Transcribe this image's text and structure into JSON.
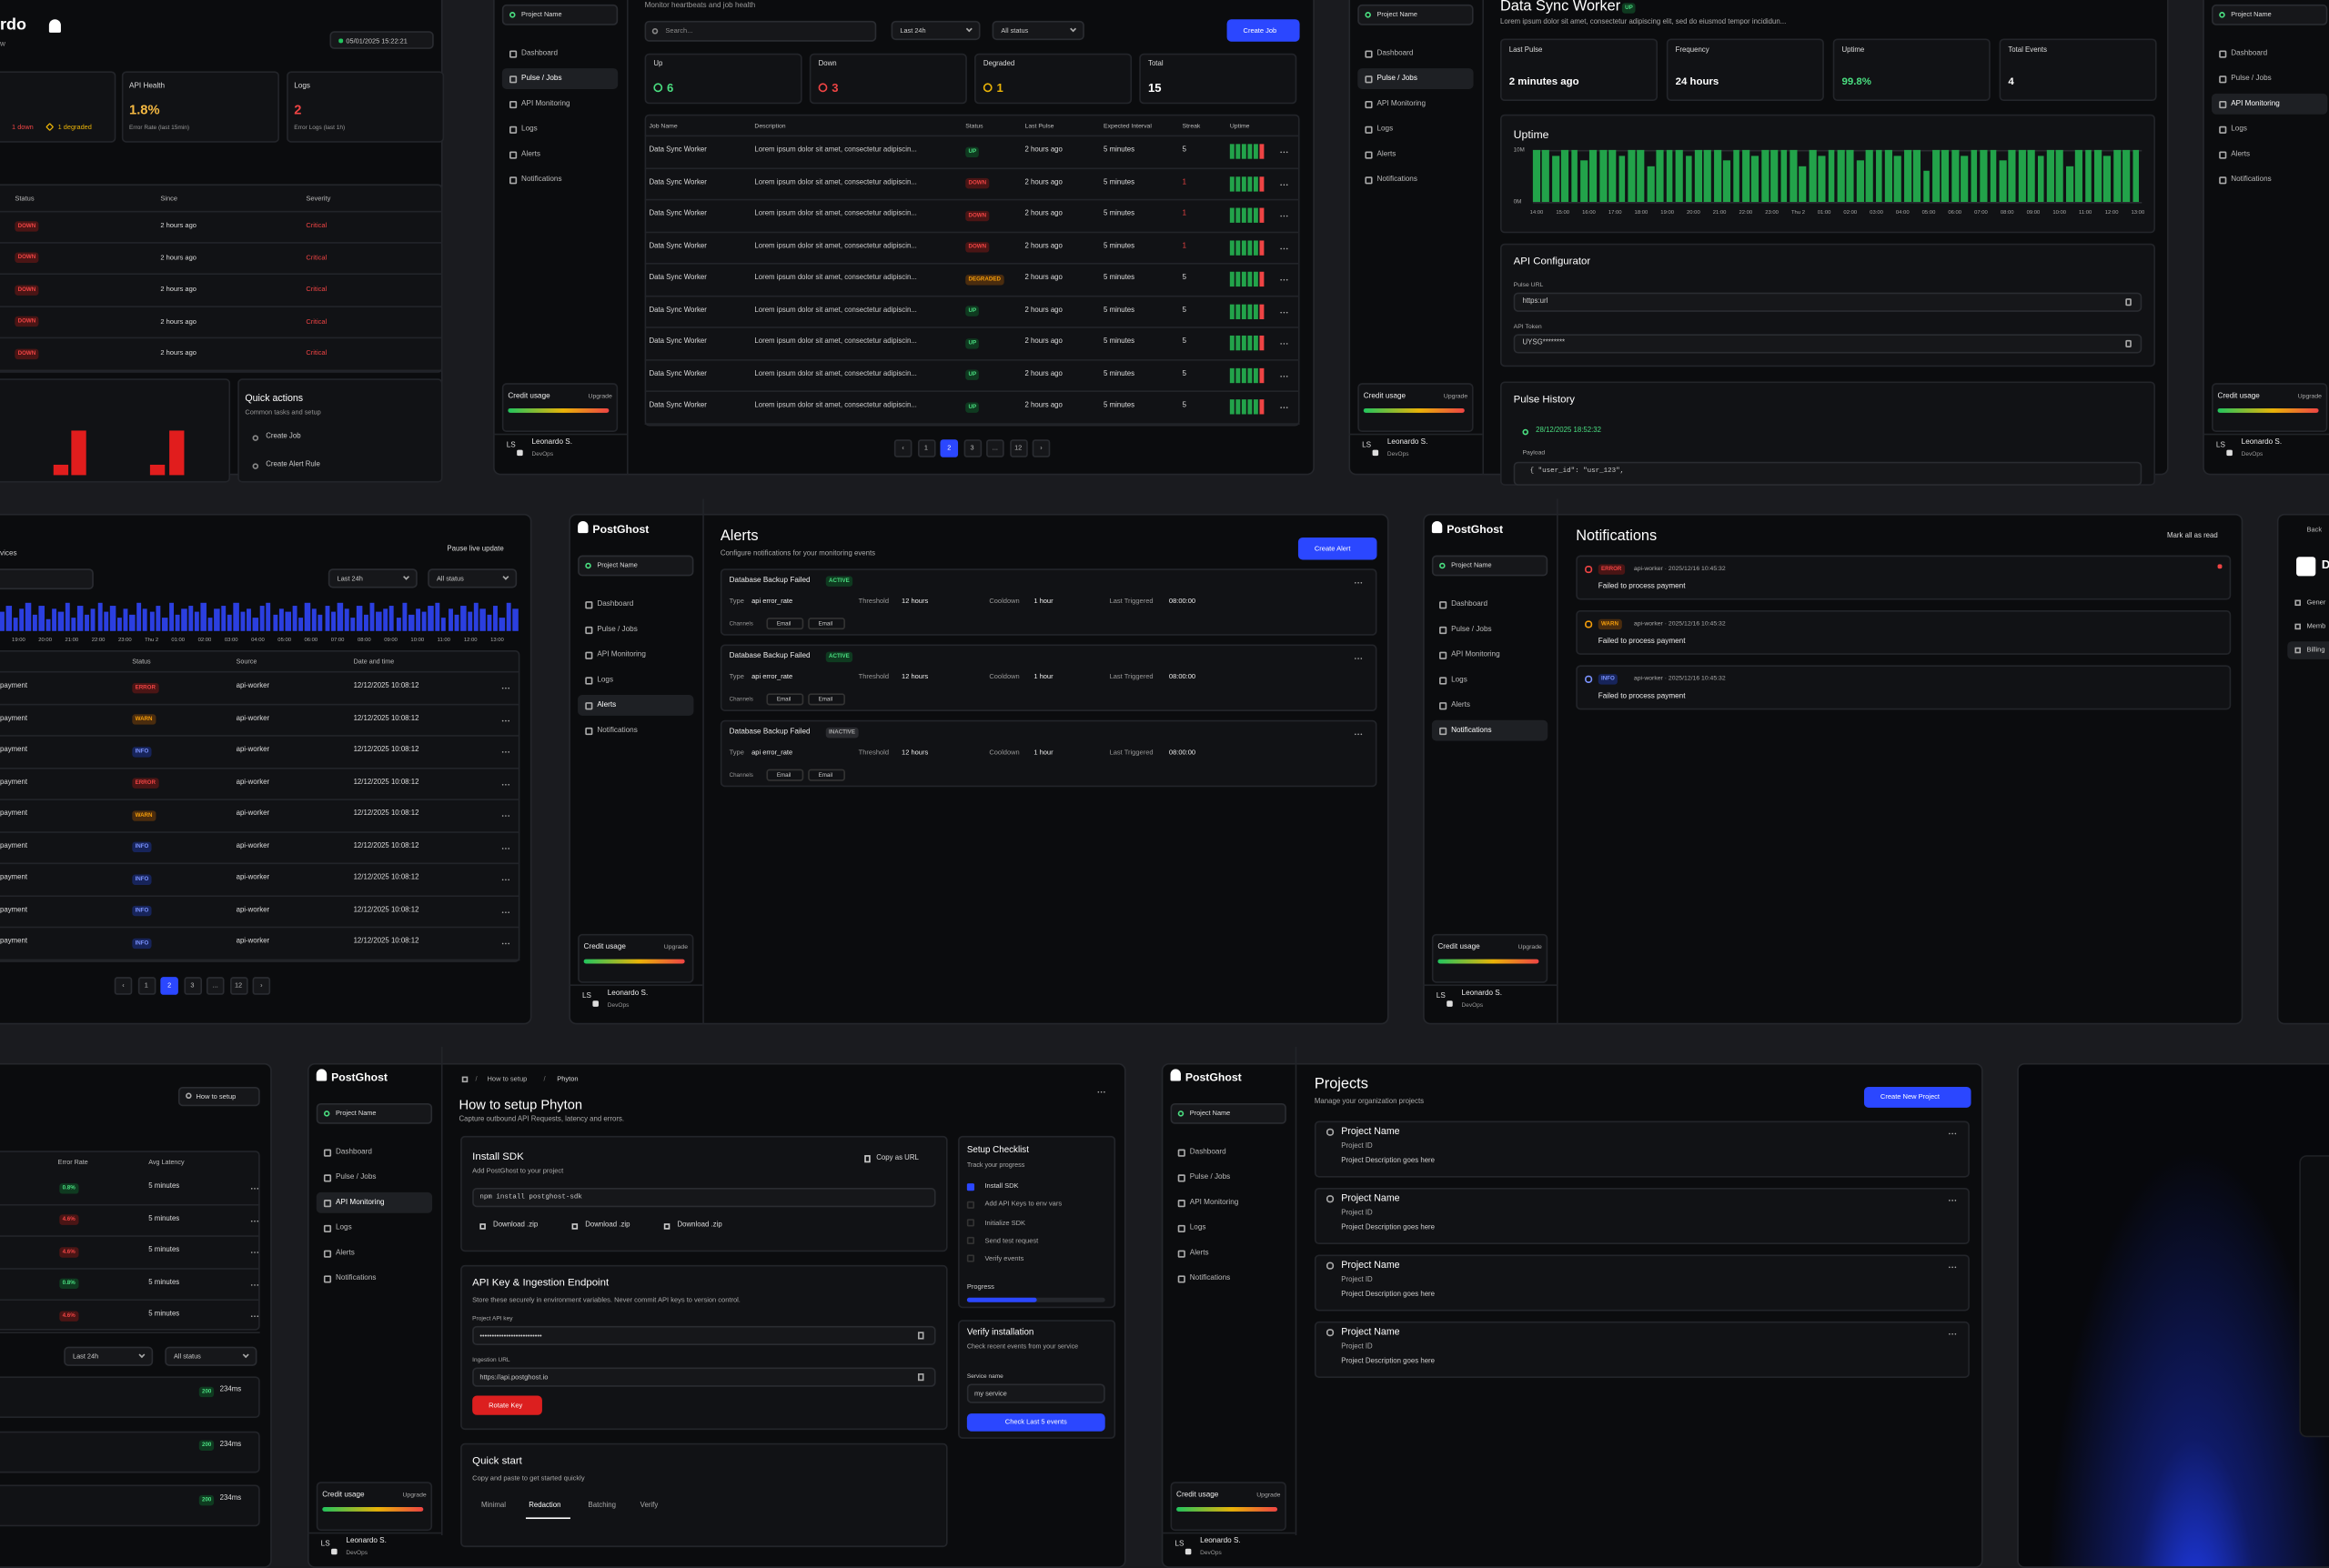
{
  "sidebar": {
    "logo": "PostGhost",
    "project": "Project Name",
    "nav": [
      "Dashboard",
      "Pulse / Jobs",
      "API Monitoring",
      "Logs",
      "Alerts",
      "Notifications"
    ],
    "credit": "Credit usage",
    "upgrade": "Upgrade",
    "initials": "LS",
    "user": "Leonardo S.",
    "role": "DevOps"
  },
  "dashboard": {
    "title": "rdo",
    "subtitle": "w",
    "timestamp": "05/01/2025 15:22:21",
    "status_down": "1 down",
    "status_degraded": "1 degraded",
    "cards": [
      {
        "label": "API Health",
        "value": "1.8%",
        "note": "Error Rate (last 15min)"
      },
      {
        "label": "Logs",
        "value": "2",
        "note": "Error Logs (last 1h)"
      }
    ],
    "table": {
      "headers": [
        "Status",
        "Since",
        "Severity"
      ],
      "rows": [
        [
          "DOWN",
          "2 hours ago",
          "Critical"
        ],
        [
          "DOWN",
          "2 hours ago",
          "Critical"
        ],
        [
          "DOWN",
          "2 hours ago",
          "Critical"
        ],
        [
          "DOWN",
          "2 hours ago",
          "Critical"
        ],
        [
          "DOWN",
          "2 hours ago",
          "Critical"
        ]
      ]
    },
    "error_bars": [
      2,
      8,
      2,
      8
    ],
    "quick_actions": {
      "title": "Quick actions",
      "subtitle": "Common tasks and setup",
      "items": [
        "Create Job",
        "Create Alert Rule"
      ]
    }
  },
  "jobs": {
    "subtitle": "Monitor heartbeats and job health",
    "search": "Search...",
    "filters": [
      "Last 24h",
      "All status"
    ],
    "create": "Create Job",
    "stats": [
      {
        "label": "Up",
        "value": "6"
      },
      {
        "label": "Down",
        "value": "3"
      },
      {
        "label": "Degraded",
        "value": "1"
      },
      {
        "label": "Total",
        "value": "15"
      }
    ],
    "headers": [
      "Job Name",
      "Description",
      "Status",
      "Last Pulse",
      "Expected Interval",
      "Streak",
      "Uptime"
    ],
    "rows": [
      [
        "Data Sync Worker",
        "Lorem ipsum dolor sit amet, consectetur adipiscin...",
        "UP",
        "2 hours ago",
        "5 minutes",
        "5"
      ],
      [
        "Data Sync Worker",
        "Lorem ipsum dolor sit amet, consectetur adipiscin...",
        "DOWN",
        "2 hours ago",
        "5 minutes",
        "1"
      ],
      [
        "Data Sync Worker",
        "Lorem ipsum dolor sit amet, consectetur adipiscin...",
        "DOWN",
        "2 hours ago",
        "5 minutes",
        "1"
      ],
      [
        "Data Sync Worker",
        "Lorem ipsum dolor sit amet, consectetur adipiscin...",
        "DOWN",
        "2 hours ago",
        "5 minutes",
        "1"
      ],
      [
        "Data Sync Worker",
        "Lorem ipsum dolor sit amet, consectetur adipiscin...",
        "DEGRADED",
        "2 hours ago",
        "5 minutes",
        "5"
      ],
      [
        "Data Sync Worker",
        "Lorem ipsum dolor sit amet, consectetur adipiscin...",
        "UP",
        "2 hours ago",
        "5 minutes",
        "5"
      ],
      [
        "Data Sync Worker",
        "Lorem ipsum dolor sit amet, consectetur adipiscin...",
        "UP",
        "2 hours ago",
        "5 minutes",
        "5"
      ],
      [
        "Data Sync Worker",
        "Lorem ipsum dolor sit amet, consectetur adipiscin...",
        "UP",
        "2 hours ago",
        "5 minutes",
        "5"
      ],
      [
        "Data Sync Worker",
        "Lorem ipsum dolor sit amet, consectetur adipiscin...",
        "UP",
        "2 hours ago",
        "5 minutes",
        "5"
      ]
    ],
    "pagination": [
      "‹",
      "1",
      "2",
      "3",
      "...",
      "12",
      "›"
    ]
  },
  "job_detail": {
    "title": "Data Sync Worker",
    "status": "UP",
    "description": "Lorem ipsum dolor sit amet, consectetur adipiscing elit, sed do eiusmod tempor incididun...",
    "cards": [
      {
        "label": "Last Pulse",
        "value": "2 minutes ago"
      },
      {
        "label": "Frequency",
        "value": "24 hours"
      },
      {
        "label": "Uptime",
        "value": "99.8%"
      },
      {
        "label": "Total Events",
        "value": "4"
      }
    ],
    "uptime": {
      "title": "Uptime",
      "ylim": [
        0,
        10
      ],
      "yticks": [
        {
          "value": 0,
          "label": "0M"
        },
        {
          "value": 10,
          "label": "10M"
        }
      ],
      "x_labels": [
        "14:00",
        "15:00",
        "16:00",
        "17:00",
        "18:00",
        "19:00",
        "20:00",
        "21:00",
        "22:00",
        "23:00",
        "Thu 2",
        "01:00",
        "02:00",
        "03:00",
        "04:00",
        "05:00",
        "06:00",
        "07:00",
        "08:00",
        "09:00",
        "10:00",
        "11:00",
        "12:00",
        "13:00"
      ],
      "values": [
        10,
        10,
        9,
        10,
        10,
        8,
        10,
        10,
        10,
        9,
        10,
        10,
        7,
        10,
        10,
        10,
        9,
        10,
        10,
        10,
        8,
        10,
        10,
        9,
        10,
        10,
        10,
        10,
        7,
        10,
        9,
        10,
        10,
        10,
        8,
        10,
        10,
        10,
        9,
        10,
        10,
        6,
        10,
        10,
        10,
        9,
        10,
        10,
        10,
        8,
        10,
        10,
        10,
        9,
        10,
        10,
        7,
        10,
        10,
        10,
        9,
        10,
        10,
        10
      ]
    },
    "configurator": {
      "title": "API Configurator",
      "fields": [
        {
          "label": "Pulse URL",
          "value": "https:url"
        },
        {
          "label": "API Token",
          "value": "UYSG********"
        }
      ]
    },
    "history": {
      "title": "Pulse History",
      "timestamp": "28/12/2025 18:52:32",
      "payload_label": "Payload",
      "payload": "{ \"user_id\": \"usr_123\","
    }
  },
  "logs": {
    "title": "vices",
    "pause": "Pause live update",
    "filters": [
      "Last 24h",
      "All status"
    ],
    "timeline_x": [
      "19:00",
      "20:00",
      "21:00",
      "22:00",
      "23:00",
      "Thu 2",
      "01:00",
      "02:00",
      "03:00",
      "04:00",
      "05:00",
      "06:00",
      "07:00",
      "08:00",
      "09:00",
      "10:00",
      "11:00",
      "12:00",
      "13:00"
    ],
    "timeline": [
      7,
      9,
      5,
      8,
      10,
      6,
      9,
      4,
      8,
      7,
      10,
      5,
      9,
      6,
      8,
      10,
      7,
      9,
      5,
      8,
      6,
      10,
      8,
      7,
      9,
      5,
      10,
      6,
      8,
      9,
      7,
      10,
      5,
      8,
      9,
      6,
      10,
      7,
      8,
      5,
      9,
      10,
      6,
      8,
      7,
      9,
      5,
      10,
      8,
      6,
      9,
      7,
      10,
      8,
      5,
      9,
      6,
      10,
      7,
      8,
      9,
      5,
      10,
      6,
      8,
      7,
      9,
      10,
      5,
      8,
      6,
      9,
      7,
      10,
      8,
      6,
      9,
      5,
      10,
      8
    ],
    "headers": [
      "Status",
      "Source",
      "Date and time"
    ],
    "rows": [
      [
        "payment",
        "ERROR",
        "api-worker",
        "12/12/2025 10:08:12"
      ],
      [
        "payment",
        "WARN",
        "api-worker",
        "12/12/2025 10:08:12"
      ],
      [
        "payment",
        "INFO",
        "api-worker",
        "12/12/2025 10:08:12"
      ],
      [
        "payment",
        "ERROR",
        "api-worker",
        "12/12/2025 10:08:12"
      ],
      [
        "payment",
        "WARN",
        "api-worker",
        "12/12/2025 10:08:12"
      ],
      [
        "payment",
        "INFO",
        "api-worker",
        "12/12/2025 10:08:12"
      ],
      [
        "payment",
        "INFO",
        "api-worker",
        "12/12/2025 10:08:12"
      ],
      [
        "payment",
        "INFO",
        "api-worker",
        "12/12/2025 10:08:12"
      ],
      [
        "payment",
        "INFO",
        "api-worker",
        "12/12/2025 10:08:12"
      ]
    ],
    "pagination": [
      "‹",
      "1",
      "2",
      "3",
      "...",
      "12",
      "›"
    ]
  },
  "alerts": {
    "title": "Alerts",
    "subtitle": "Configure notifications for your monitoring events",
    "create": "Create Alert",
    "labels": {
      "type": "Type",
      "threshold": "Threshold",
      "cooldown": "Cooldown",
      "last": "Last Triggered",
      "channels": "Channels"
    },
    "items": [
      {
        "name": "Database Backup Failed",
        "status": "ACTIVE",
        "type": "api error_rate",
        "threshold": "12 hours",
        "cooldown": "1 hour",
        "last": "08:00:00",
        "channels": [
          "Email",
          "Email"
        ]
      },
      {
        "name": "Database Backup Failed",
        "status": "ACTIVE",
        "type": "api error_rate",
        "threshold": "12 hours",
        "cooldown": "1 hour",
        "last": "08:00:00",
        "channels": [
          "Email",
          "Email"
        ]
      },
      {
        "name": "Database Backup Failed",
        "status": "INACTIVE",
        "type": "api error_rate",
        "threshold": "12 hours",
        "cooldown": "1 hour",
        "last": "08:00:00",
        "channels": [
          "Email",
          "Email"
        ]
      }
    ]
  },
  "notifications": {
    "title": "Notifications",
    "mark": "Mark all as read",
    "items": [
      {
        "level": "ERROR",
        "meta": "api-worker · 2025/12/16 10:45:32",
        "message": "Failed to process payment"
      },
      {
        "level": "WARN",
        "meta": "api-worker · 2025/12/16 10:45:32",
        "message": "Failed to process payment"
      },
      {
        "level": "INFO",
        "meta": "api-worker · 2025/12/16 10:45:32",
        "message": "Failed to process payment"
      }
    ]
  },
  "settings": {
    "back": "Back",
    "logo": "D",
    "nav": [
      "Gener",
      "Memb",
      "Billing"
    ]
  },
  "api_list": {
    "setup": "How to setup",
    "headers": [
      "Error Rate",
      "Avg Latency"
    ],
    "rows": [
      [
        "0.8%",
        "5 minutes"
      ],
      [
        "4.6%",
        "5 minutes"
      ],
      [
        "4.6%",
        "5 minutes"
      ],
      [
        "0.8%",
        "5 minutes"
      ],
      [
        "4.6%",
        "5 minutes"
      ]
    ],
    "filters": [
      "Last 24h",
      "All status"
    ],
    "requests": [
      {
        "code": "200",
        "latency": "234ms"
      },
      {
        "code": "200",
        "latency": "234ms"
      },
      {
        "code": "200",
        "latency": "234ms"
      }
    ]
  },
  "setup": {
    "breadcrumb": [
      "How to setup",
      "Phyton"
    ],
    "separator": "/",
    "title": "How to setup Phyton",
    "subtitle": "Capture outbound API Requests, latency and errors.",
    "install": {
      "title": "Install SDK",
      "subtitle": "Add PostGhost to your project",
      "copy": "Copy as URL",
      "command": "npm install postghost-sdk",
      "downloads": [
        "Download .zip",
        "Download .zip",
        "Download .zip"
      ]
    },
    "keys": {
      "title": "API Key & Ingestion Endpoint",
      "description": "Store these securely in environment variables. Never commit API keys to version control.",
      "key_label": "Project API key",
      "key": "••••••••••••••••••••••••••",
      "url_label": "Ingestion URL",
      "url": "https://api.postghost.io",
      "rotate": "Rotate Key"
    },
    "quick": {
      "title": "Quick start",
      "subtitle": "Copy and paste to get started quickly",
      "tabs": [
        "Minimal",
        "Redaction",
        "Batching",
        "Verify"
      ]
    },
    "checklist": {
      "title": "Setup Checklist",
      "subtitle": "Track your progress",
      "items": [
        "Install SDK",
        "Add API Keys to env vars",
        "Initialize SDK",
        "Send test request",
        "Verify events"
      ],
      "progress": "Progress",
      "progress_value": 50
    },
    "verify": {
      "title": "Verify installation",
      "subtitle": "Check recent events from your service",
      "label": "Service name",
      "value": "my service",
      "button": "Check Last 5 events"
    }
  },
  "projects": {
    "title": "Projects",
    "subtitle": "Manage your organization projects",
    "create": "Create New Project",
    "items": [
      {
        "name": "Project Name",
        "id": "Project ID",
        "description": "Project Description goes here"
      },
      {
        "name": "Project Name",
        "id": "Project ID",
        "description": "Project Description goes here"
      },
      {
        "name": "Project Name",
        "id": "Project ID",
        "description": "Project Description goes here"
      },
      {
        "name": "Project Name",
        "id": "Project ID",
        "description": "Project Description goes here"
      }
    ]
  }
}
